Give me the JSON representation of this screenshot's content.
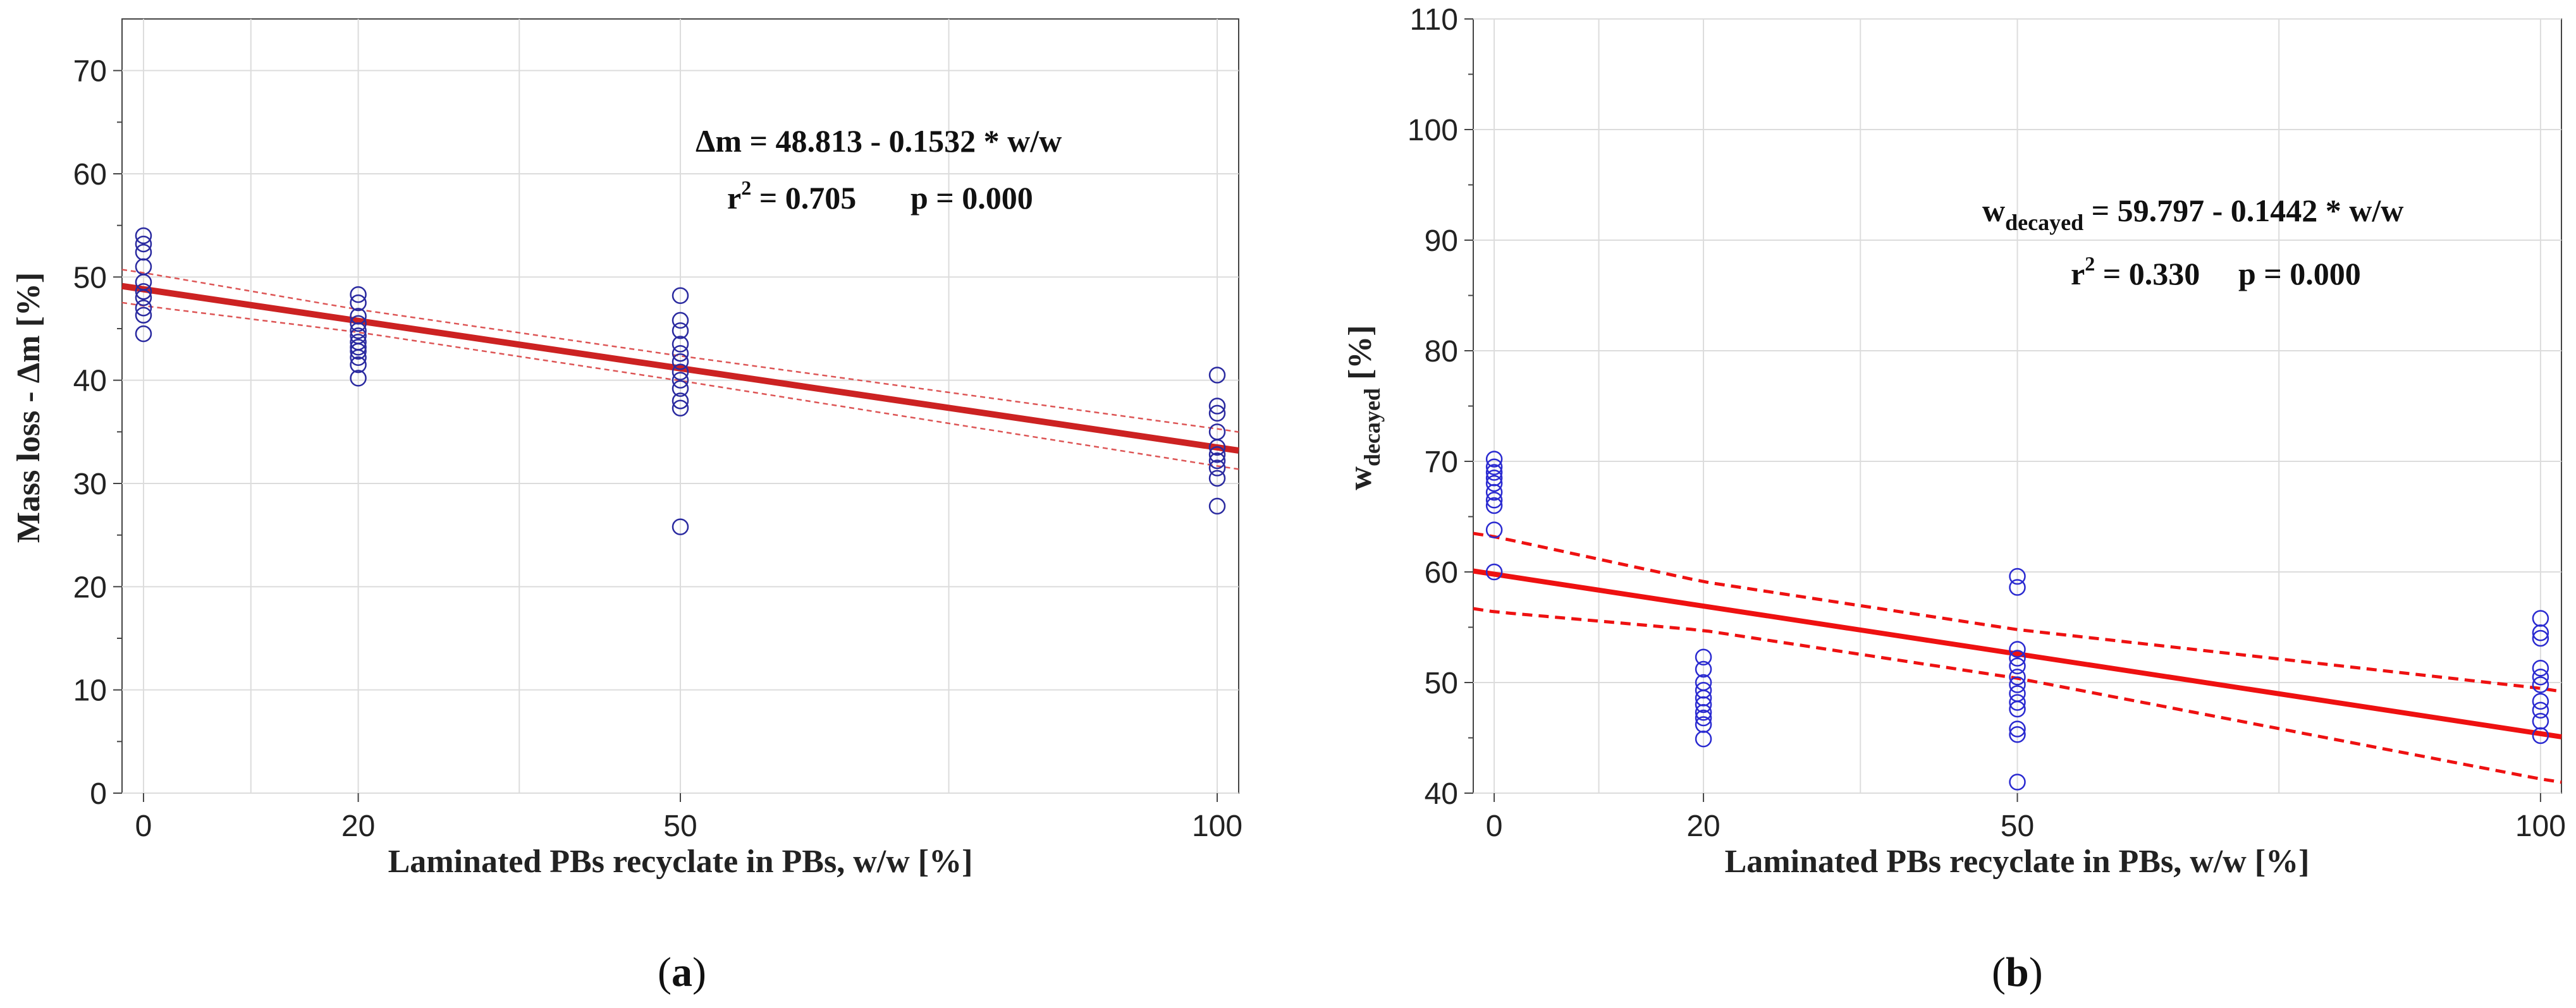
{
  "chart_data": [
    {
      "type": "scatter",
      "panel_label": "a",
      "xlabel": "Laminated PBs recyclate in PBs, w/w [%]",
      "ylabel": "Mass loss - Δm [%]",
      "xlim": [
        -2,
        102
      ],
      "ylim": [
        0,
        75
      ],
      "xticks": [
        0,
        20,
        50,
        100
      ],
      "yticks": [
        0,
        10,
        20,
        30,
        40,
        50,
        60,
        70
      ],
      "grid": true,
      "equation": "Δm = 48.813 - 0.1532 * w/w",
      "r2_label": "r",
      "r2_sup": "2",
      "r2_value": " = 0.705",
      "p_value": "p = 0.000",
      "fit": {
        "intercept": 48.813,
        "slope": -0.1532
      },
      "ci_halfwidth": [
        1.6,
        1.1,
        1.2,
        1.8
      ],
      "points": [
        {
          "x": 0,
          "y": [
            54,
            53.2,
            52.4,
            51,
            49.5,
            48.6,
            48,
            47,
            46.3,
            44.5
          ]
        },
        {
          "x": 20,
          "y": [
            48.3,
            47.5,
            46.2,
            45.5,
            44.8,
            44.3,
            43.7,
            43.2,
            42.8,
            42.2,
            41.5,
            40.2
          ]
        },
        {
          "x": 50,
          "y": [
            48.2,
            45.8,
            44.8,
            43.5,
            42.6,
            41.8,
            40.8,
            40,
            39.2,
            38,
            37.3,
            25.8
          ]
        },
        {
          "x": 100,
          "y": [
            40.5,
            37.5,
            36.8,
            35,
            33.5,
            32.8,
            32.2,
            31.5,
            30.5,
            27.8
          ]
        }
      ],
      "series_color": "#2a2aa0",
      "fit_color": "#cc2222",
      "ci_color": "#dd5555"
    },
    {
      "type": "scatter",
      "panel_label": "b",
      "xlabel": "Laminated PBs recyclate in PBs, w/w [%]",
      "ylabel_main": "w",
      "ylabel_sub": "decayed",
      "ylabel_tail": " [%]",
      "xlim": [
        -2,
        102
      ],
      "ylim": [
        40,
        110
      ],
      "xticks": [
        0,
        20,
        50,
        100
      ],
      "yticks": [
        40,
        50,
        60,
        70,
        80,
        90,
        100,
        110
      ],
      "grid": true,
      "equation_main": "w",
      "equation_sub": "decayed",
      "equation_tail": " = 59.797 - 0.1442 * w/w",
      "r2_label": "r",
      "r2_sup": "2",
      "r2_value": " = 0.330",
      "p_value": "p = 0.000",
      "fit": {
        "intercept": 59.797,
        "slope": -0.1442
      },
      "ci_halfwidth": [
        3.4,
        2.2,
        2.2,
        4.1
      ],
      "points": [
        {
          "x": 0,
          "y": [
            70.2,
            69.5,
            69,
            68.5,
            68,
            67.2,
            66.5,
            66,
            63.8,
            60
          ]
        },
        {
          "x": 20,
          "y": [
            52.3,
            51.2,
            50,
            49.3,
            48.6,
            48,
            47.3,
            46.8,
            46.2,
            44.9
          ]
        },
        {
          "x": 50,
          "y": [
            59.6,
            58.6,
            53,
            52.2,
            51.5,
            50.5,
            49.8,
            49,
            48.2,
            47.6,
            45.8,
            45.3,
            41
          ]
        },
        {
          "x": 100,
          "y": [
            55.8,
            54.5,
            54,
            51.3,
            50.5,
            49.8,
            48.3,
            47.5,
            46.5,
            45.2
          ]
        }
      ],
      "series_color": "#2a2ad0",
      "fit_color": "#ee1111",
      "ci_color": "#ee1111"
    }
  ]
}
